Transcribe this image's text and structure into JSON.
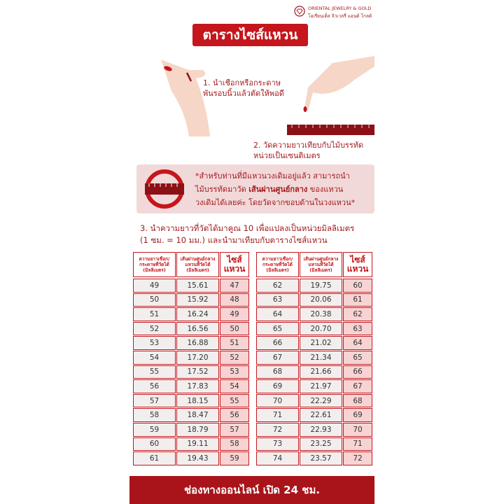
{
  "logo": {
    "brand": "ORIENTAL JEWELRY & GOLD",
    "brand_thai": "โอเรียนเต็ล จิวเวลรี่ แอนด์ โกลด์"
  },
  "title": "ตารางไซส์แหวน",
  "step1": [
    "1. นำเชือกหรือกระดาษ",
    "พันรอบนิ้วแล้วตัดให้พอดี"
  ],
  "step2": [
    "2. วัดความยาวเทียบกับไม้บรรทัด",
    "หน่วยเป็นเซนติเมตร"
  ],
  "note": {
    "line1": "*สำหรับท่านที่มีแหวนวงเดิมอยู่แล้ว สามารถนำ",
    "line2": [
      "ไม้บรรทัดมาวัด",
      "เส้นผ่านศูนย์กลาง",
      "ของแหวน"
    ],
    "line3": "วงเดิมได้เลยค่ะ โดยวัดจากขอบด้านในวงแหวน*"
  },
  "step3": [
    "3. นำความยาวที่วัดได้มาคูณ 10 เพื่อแปลงเป็นหน่วยมิลลิเมตร",
    "(1 ซม. = 10 มม.) และนำมาเทียบกับตารางไซส์แหวน"
  ],
  "tables": [
    {
      "headers": [
        [
          "ความยาวเชือก/",
          "กระดาษที่วัดได้",
          "(มิลลิเมตร)"
        ],
        [
          "เส้นผ่านศูนย์กลาง",
          "แหวนที่วัดได้",
          "(มิลลิเมตร)"
        ],
        [
          "ไซส์",
          "แหวน"
        ]
      ],
      "rows": [
        [
          "49",
          "15.61",
          "47"
        ],
        [
          "50",
          "15.92",
          "48"
        ],
        [
          "51",
          "16.24",
          "49"
        ],
        [
          "52",
          "16.56",
          "50"
        ],
        [
          "53",
          "16.88",
          "51"
        ],
        [
          "54",
          "17.20",
          "52"
        ],
        [
          "55",
          "17.52",
          "53"
        ],
        [
          "56",
          "17.83",
          "54"
        ],
        [
          "57",
          "18.15",
          "55"
        ],
        [
          "58",
          "18.47",
          "56"
        ],
        [
          "59",
          "18.79",
          "57"
        ],
        [
          "60",
          "19.11",
          "58"
        ],
        [
          "61",
          "19.43",
          "59"
        ]
      ]
    },
    {
      "headers": [
        [
          "ความยาวเชือก/",
          "กระดาษที่วัดได้",
          "(มิลลิเมตร)"
        ],
        [
          "เส้นผ่านศูนย์กลาง",
          "แหวนที่วัดได้",
          "(มิลลิเมตร)"
        ],
        [
          "ไซส์",
          "แหวน"
        ]
      ],
      "rows": [
        [
          "62",
          "19.75",
          "60"
        ],
        [
          "63",
          "20.06",
          "61"
        ],
        [
          "64",
          "20.38",
          "62"
        ],
        [
          "65",
          "20.70",
          "63"
        ],
        [
          "66",
          "21.02",
          "64"
        ],
        [
          "67",
          "21.34",
          "65"
        ],
        [
          "68",
          "21.66",
          "66"
        ],
        [
          "69",
          "21.97",
          "67"
        ],
        [
          "70",
          "22.29",
          "68"
        ],
        [
          "71",
          "22.61",
          "69"
        ],
        [
          "72",
          "22.93",
          "70"
        ],
        [
          "73",
          "23.25",
          "71"
        ],
        [
          "74",
          "23.57",
          "72"
        ]
      ]
    }
  ],
  "footer": "ช่องทางออนไลน์ เปิด 24 ชม."
}
